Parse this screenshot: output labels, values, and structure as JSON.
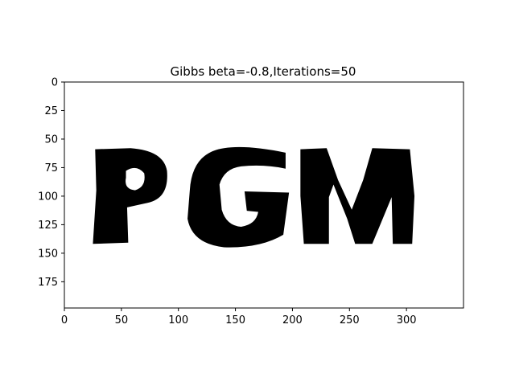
{
  "chart_data": {
    "type": "heatmap",
    "title": "Gibbs beta=-0.8,Iterations=50",
    "xlabel": "",
    "ylabel": "",
    "image_width": 350,
    "image_height": 198,
    "xlim": [
      0,
      350
    ],
    "ylim": [
      198,
      0
    ],
    "x_ticks": [
      0,
      50,
      100,
      150,
      200,
      250,
      300
    ],
    "y_ticks": [
      0,
      25,
      50,
      75,
      100,
      125,
      150,
      175
    ],
    "colormap": "binary",
    "colors": {
      "foreground": "#000000",
      "background": "#ffffff"
    },
    "grid": false,
    "image_text": "PGM"
  }
}
